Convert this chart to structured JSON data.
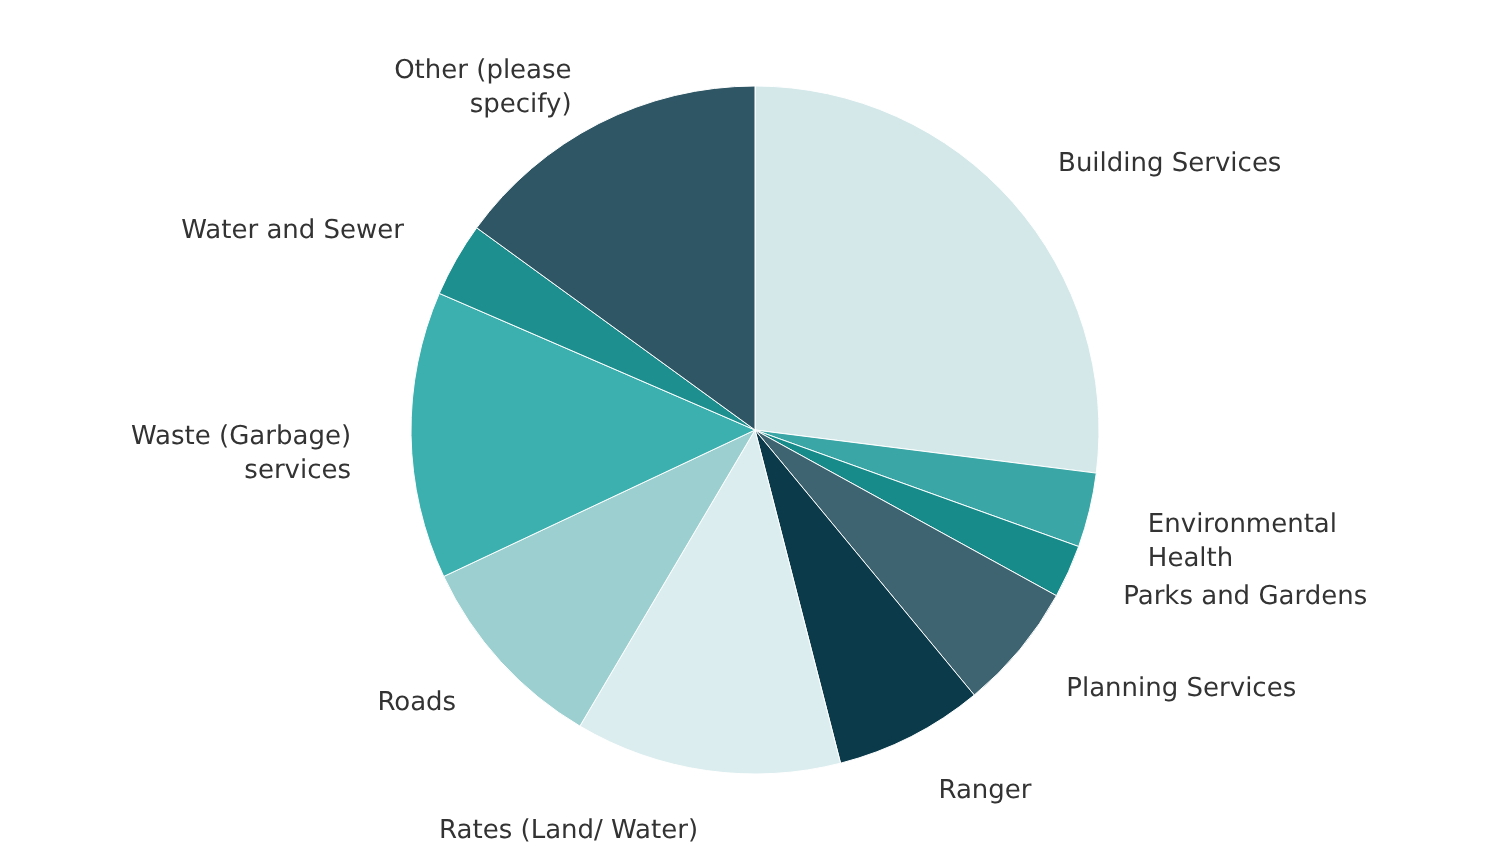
{
  "chart_data": {
    "type": "pie",
    "categories": [
      "Building Services",
      "Environmental\nHealth",
      "Parks and Gardens",
      "Planning Services",
      "Ranger",
      "Rates (Land/ Water)",
      "Roads",
      "Waste (Garbage)\nservices",
      "Water and Sewer",
      "Other (please\nspecify)"
    ],
    "values": [
      27,
      3.5,
      2.5,
      6,
      7,
      12.5,
      9.5,
      13.5,
      3.5,
      15
    ],
    "colors": [
      "#d4e8ea",
      "#3aa6a6",
      "#178a8a",
      "#3d6470",
      "#0b3a4a",
      "#dcedef",
      "#9ccfcf",
      "#3bb0ae",
      "#1e8f8f",
      "#2e5664"
    ]
  }
}
